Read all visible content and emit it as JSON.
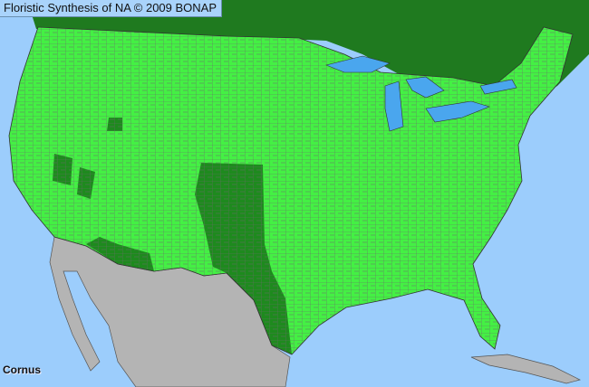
{
  "title": "Floristic Synthesis of NA © 2009 BONAP",
  "taxon": "Cornus",
  "colors": {
    "ocean": "#9ccdfc",
    "canada": "#1f7a1f",
    "present": "#44f044",
    "present_dense": "#1e8a1e",
    "mexico": "#b4b4b4",
    "county_lines": "#6a6a6a",
    "lakes": "#4aa6ee"
  }
}
